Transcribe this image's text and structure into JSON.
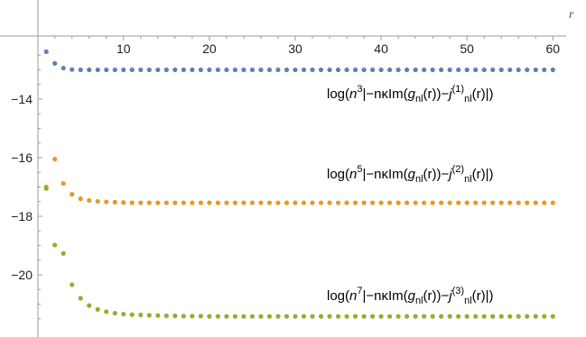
{
  "chart_data": {
    "type": "scatter",
    "xlabel": "r",
    "ylabel": "",
    "xlim": [
      0,
      61
    ],
    "ylim": [
      -21.8,
      -11.6
    ],
    "xticks": [
      10,
      20,
      30,
      40,
      50,
      60
    ],
    "yticks": [
      -14,
      -16,
      -18,
      -20
    ],
    "grid": false,
    "series": [
      {
        "label": {
          "pre": "log(",
          "n": "n",
          "exp": "3",
          "mid": "|−nκIm(",
          "g": "g",
          "sub1": "nl",
          "mid2": "(r))−",
          "j": "j",
          "sup": "(1)",
          "sub2": "nl",
          "post": "(r)|)"
        },
        "color": "#5E81B5",
        "x_start": 1,
        "values": [
          -12.38,
          -12.78,
          -12.94,
          -12.99,
          -13.0,
          -13.0,
          -13.0,
          -13.0,
          -13.0,
          -13.0,
          -13.0,
          -13.0,
          -13.0,
          -13.0,
          -13.0,
          -13.0,
          -13.0,
          -13.0,
          -13.0,
          -13.0,
          -13.0,
          -13.0,
          -13.0,
          -13.0,
          -13.0,
          -13.0,
          -13.0,
          -13.0,
          -13.0,
          -13.0,
          -13.0,
          -13.0,
          -13.0,
          -13.0,
          -13.0,
          -13.0,
          -13.0,
          -13.0,
          -13.0,
          -13.0,
          -13.0,
          -13.0,
          -13.0,
          -13.0,
          -13.0,
          -13.0,
          -13.0,
          -13.0,
          -13.0,
          -13.0,
          -13.0,
          -13.0,
          -13.0,
          -13.0,
          -13.0,
          -13.0,
          -13.0,
          -13.0,
          -13.0,
          -13.0
        ]
      },
      {
        "label": {
          "pre": "log(",
          "n": "n",
          "exp": "5",
          "mid": "|−nκIm(",
          "g": "g",
          "sub1": "nl",
          "mid2": "(r))−",
          "j": "j",
          "sup": "(2)",
          "sub2": "nl",
          "post": "(r)|)"
        },
        "color": "#E19C24",
        "x_start": 1,
        "values": [
          -17.0,
          -16.05,
          -16.88,
          -17.25,
          -17.4,
          -17.46,
          -17.49,
          -17.51,
          -17.52,
          -17.53,
          -17.54,
          -17.54,
          -17.54,
          -17.54,
          -17.54,
          -17.54,
          -17.54,
          -17.54,
          -17.54,
          -17.54,
          -17.54,
          -17.54,
          -17.54,
          -17.54,
          -17.54,
          -17.54,
          -17.54,
          -17.54,
          -17.54,
          -17.54,
          -17.54,
          -17.54,
          -17.54,
          -17.54,
          -17.54,
          -17.54,
          -17.54,
          -17.54,
          -17.54,
          -17.54,
          -17.54,
          -17.54,
          -17.54,
          -17.54,
          -17.54,
          -17.54,
          -17.54,
          -17.54,
          -17.54,
          -17.54,
          -17.54,
          -17.54,
          -17.54,
          -17.54,
          -17.54,
          -17.54,
          -17.54,
          -17.54,
          -17.54,
          -17.54
        ]
      },
      {
        "label": {
          "pre": "log(",
          "n": "n",
          "exp": "7",
          "mid": "|−nκIm(",
          "g": "g",
          "sub1": "nl",
          "mid2": "(r))−",
          "j": "j",
          "sup": "(3)",
          "sub2": "nl",
          "post": "(r)|)"
        },
        "color": "#8FB032",
        "x_start": 1,
        "values": [
          -17.05,
          -18.98,
          -19.27,
          -20.34,
          -20.8,
          -21.05,
          -21.18,
          -21.26,
          -21.31,
          -21.34,
          -21.36,
          -21.37,
          -21.38,
          -21.39,
          -21.4,
          -21.4,
          -21.41,
          -21.41,
          -21.41,
          -21.42,
          -21.42,
          -21.42,
          -21.42,
          -21.42,
          -21.42,
          -21.42,
          -21.42,
          -21.42,
          -21.42,
          -21.42,
          -21.42,
          -21.42,
          -21.42,
          -21.42,
          -21.42,
          -21.42,
          -21.42,
          -21.42,
          -21.42,
          -21.42,
          -21.42,
          -21.42,
          -21.42,
          -21.42,
          -21.42,
          -21.42,
          -21.42,
          -21.42,
          -21.42,
          -21.42,
          -21.42,
          -21.42,
          -21.42,
          -21.42,
          -21.42,
          -21.42,
          -21.42,
          -21.42,
          -21.42,
          -21.42
        ]
      }
    ]
  }
}
